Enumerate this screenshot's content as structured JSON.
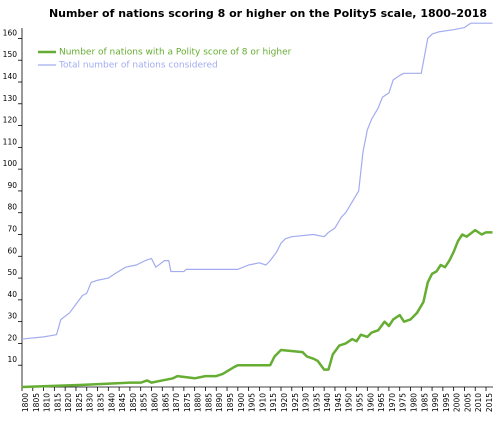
{
  "chart_data": {
    "type": "line",
    "title": "Number of nations scoring 8 or higher on the Polity5 scale, 1800–2018",
    "xlim": [
      1800,
      2018
    ],
    "ylim": [
      0,
      168
    ],
    "xticks": [
      1800,
      1805,
      1810,
      1815,
      1820,
      1825,
      1830,
      1835,
      1840,
      1845,
      1850,
      1855,
      1860,
      1865,
      1870,
      1875,
      1880,
      1885,
      1890,
      1895,
      1900,
      1905,
      1910,
      1915,
      1920,
      1925,
      1930,
      1935,
      1940,
      1945,
      1950,
      1955,
      1960,
      1965,
      1970,
      1975,
      1980,
      1985,
      1990,
      1995,
      2000,
      2005,
      2010,
      2015
    ],
    "yticks": [
      10,
      20,
      30,
      40,
      50,
      60,
      70,
      80,
      90,
      100,
      110,
      120,
      130,
      140,
      150,
      160
    ],
    "legend": "upper left",
    "series": [
      {
        "name": "Number of nations with a Polity score of 8 or higher",
        "color": "#66ad33",
        "width": 2.5,
        "x": [
          1800,
          1828,
          1850,
          1855,
          1858,
          1860,
          1865,
          1870,
          1872,
          1880,
          1885,
          1890,
          1893,
          1898,
          1900,
          1915,
          1917,
          1920,
          1930,
          1932,
          1935,
          1937,
          1940,
          1942,
          1944,
          1947,
          1950,
          1953,
          1955,
          1957,
          1960,
          1962,
          1965,
          1968,
          1970,
          1972,
          1975,
          1977,
          1980,
          1983,
          1986,
          1988,
          1990,
          1992,
          1994,
          1996,
          1998,
          2000,
          2002,
          2004,
          2006,
          2010,
          2013,
          2015,
          2018
        ],
        "values": [
          0,
          1,
          2,
          2,
          3,
          2,
          3,
          4,
          5,
          4,
          5,
          5,
          6,
          9,
          10,
          10,
          14,
          17,
          16,
          14,
          13,
          12,
          8,
          8,
          15,
          19,
          20,
          22,
          21,
          24,
          23,
          25,
          26,
          30,
          28,
          31,
          33,
          30,
          31,
          34,
          39,
          48,
          52,
          53,
          56,
          55,
          58,
          62,
          67,
          70,
          69,
          72,
          70,
          71,
          71
        ]
      },
      {
        "name": "Total number of nations considered",
        "color": "#a3acf0",
        "width": 1.2,
        "x": [
          1800,
          1810,
          1816,
          1818,
          1822,
          1825,
          1828,
          1830,
          1832,
          1835,
          1840,
          1843,
          1848,
          1853,
          1857,
          1860,
          1862,
          1866,
          1868,
          1869,
          1875,
          1876,
          1900,
          1905,
          1910,
          1913,
          1915,
          1918,
          1920,
          1922,
          1925,
          1935,
          1940,
          1942,
          1945,
          1948,
          1950,
          1953,
          1956,
          1958,
          1960,
          1962,
          1965,
          1967,
          1970,
          1972,
          1975,
          1977,
          1985,
          1988,
          1990,
          1993,
          2000,
          2005,
          2008,
          2018
        ],
        "values": [
          22,
          23,
          24,
          31,
          34,
          38,
          42,
          43,
          48,
          49,
          50,
          52,
          55,
          56,
          58,
          59,
          55,
          58,
          58,
          53,
          53,
          54,
          54,
          56,
          57,
          56,
          58,
          62,
          66,
          68,
          69,
          70,
          69,
          71,
          73,
          78,
          80,
          85,
          90,
          108,
          118,
          123,
          128,
          133,
          135,
          141,
          143,
          144,
          144,
          160,
          162,
          163,
          164,
          165,
          167,
          167
        ]
      }
    ]
  }
}
